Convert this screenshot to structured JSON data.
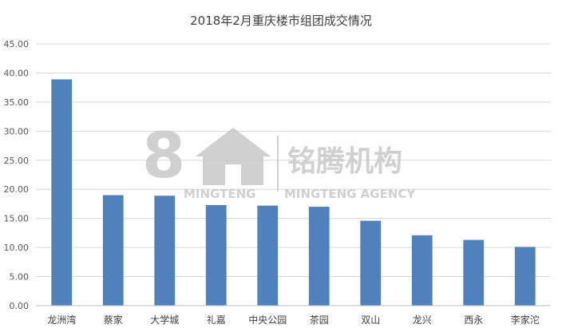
{
  "chart_data": {
    "type": "bar",
    "title": "2018年2月重庆楼市组团成交情况",
    "xlabel": "",
    "ylabel": "",
    "categories": [
      "龙洲湾",
      "蔡家",
      "大学城",
      "礼嘉",
      "中央公园",
      "茶园",
      "双山",
      "龙兴",
      "西永",
      "李家沱"
    ],
    "values": [
      38.9,
      19.0,
      18.9,
      17.3,
      17.2,
      17.0,
      14.6,
      12.1,
      11.3,
      10.1
    ],
    "ylim": [
      0,
      45
    ],
    "yticks": [
      "0.00",
      "5.00",
      "10.00",
      "15.00",
      "20.00",
      "25.00",
      "30.00",
      "35.00",
      "40.00",
      "45.00"
    ],
    "grid": true,
    "legend": "none",
    "bar_color": "#4f81bd"
  },
  "watermark": {
    "logo_char": "8",
    "brand_cn": "铭腾机构",
    "brand_en_left": "MINGTENG",
    "brand_en_right": "MINGTENG AGENCY",
    "color": "#c8c8c8"
  }
}
